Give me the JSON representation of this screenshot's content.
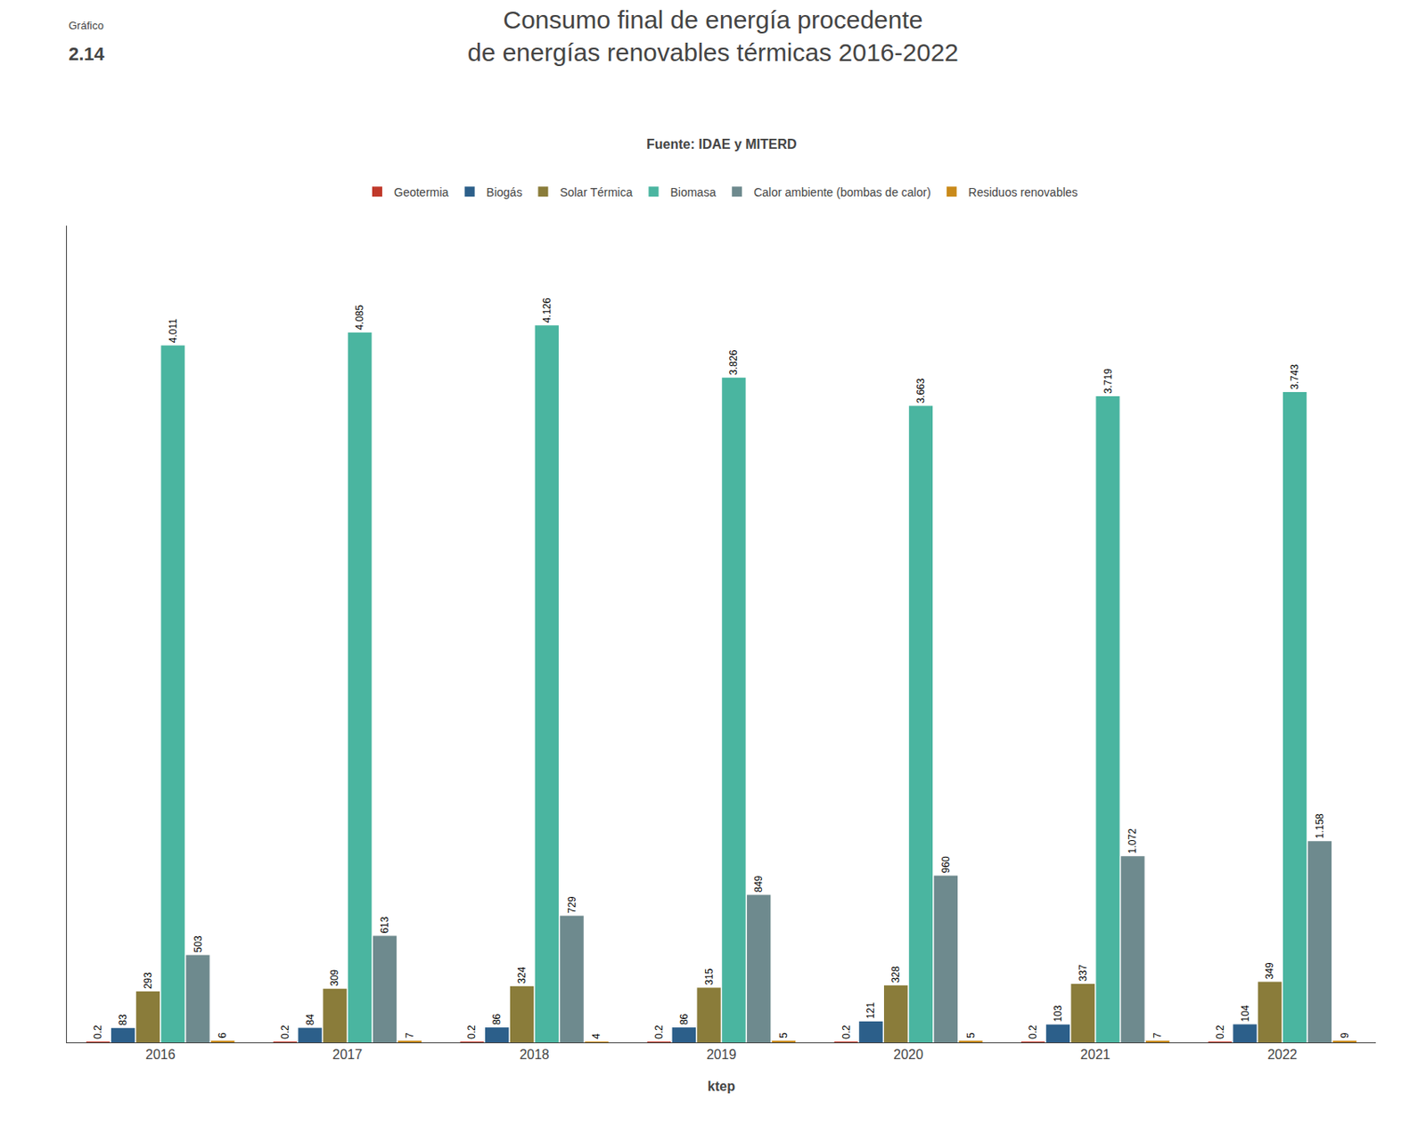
{
  "chart_data": {
    "type": "bar",
    "title": "Consumo final de energía procedente\nde energías renovables térmicas 2016-2022",
    "annotations": [
      "Gráfico",
      "2.14",
      "Fuente: IDAE y MITERD"
    ],
    "xlabel": "ktep",
    "categories": [
      "2016",
      "2017",
      "2018",
      "2019",
      "2020",
      "2021",
      "2022"
    ],
    "series": [
      {
        "name": "Geotermia",
        "color": "#c0392b",
        "values": [
          0.2,
          0.2,
          0.2,
          0.2,
          0.2,
          0.2,
          0.2
        ]
      },
      {
        "name": "Biogás",
        "color": "#2c5f8a",
        "values": [
          83,
          84,
          86,
          86,
          121,
          103,
          104
        ]
      },
      {
        "name": "Solar Térmica",
        "color": "#8a7c3a",
        "values": [
          293,
          309,
          324,
          315,
          328,
          337,
          349
        ]
      },
      {
        "name": "Biomasa",
        "color": "#4ab5a0",
        "values": [
          4011,
          4085,
          4126,
          3826,
          3663,
          3719,
          3743
        ],
        "value_labels": [
          "4.011",
          "4.085",
          "4.126",
          "3.826",
          "3.663",
          "3.719",
          "3.743"
        ]
      },
      {
        "name": "Calor ambiente (bombas de calor)",
        "color": "#6e8a8e",
        "values": [
          503,
          613,
          729,
          849,
          960,
          1072,
          1158
        ],
        "value_labels": [
          "503",
          "613",
          "729",
          "849",
          "960",
          "1.072",
          "1.158"
        ]
      },
      {
        "name": "Residuos renovables",
        "color": "#c98a1a",
        "values": [
          6,
          7,
          4,
          5,
          5,
          7,
          9
        ]
      }
    ],
    "ylim": [
      0,
      4700
    ],
    "grid": false,
    "legend": "top",
    "data_labels": true,
    "tick_labels": "x"
  }
}
